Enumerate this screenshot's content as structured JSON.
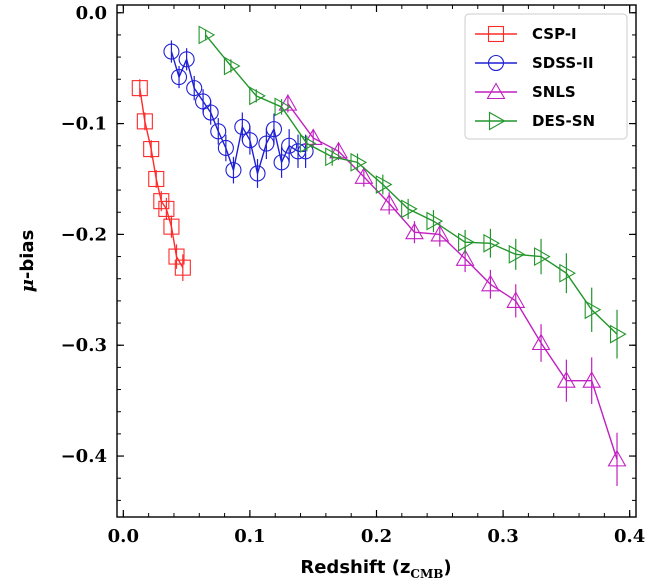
{
  "chart_data": {
    "type": "line",
    "xlabel": "Redshift (z",
    "xlabel_sub": "CMB",
    "xlabel_close": ")",
    "ylabel_symbol": "μ",
    "ylabel_text": "-bias",
    "xlim": [
      -0.005,
      0.405
    ],
    "ylim": [
      -0.455,
      0.007
    ],
    "xticks": [
      0.0,
      0.1,
      0.2,
      0.3,
      0.4
    ],
    "xtick_labels": [
      "0.0",
      "0.1",
      "0.2",
      "0.3",
      "0.4"
    ],
    "yticks": [
      0.0,
      -0.1,
      -0.2,
      -0.3,
      -0.4
    ],
    "ytick_labels": [
      "0.0",
      "−0.1",
      "−0.2",
      "−0.3",
      "−0.4"
    ],
    "legend_position": "top-right",
    "series": [
      {
        "name": "CSP-I",
        "color": "#ff2a2a",
        "marker": "square",
        "x": [
          0.013,
          0.017,
          0.022,
          0.026,
          0.03,
          0.034,
          0.038,
          0.042,
          0.047
        ],
        "y": [
          -0.068,
          -0.098,
          -0.123,
          -0.15,
          -0.17,
          -0.177,
          -0.193,
          -0.22,
          -0.23
        ],
        "err": [
          0.008,
          0.008,
          0.008,
          0.008,
          0.009,
          0.01,
          0.01,
          0.011,
          0.012
        ]
      },
      {
        "name": "SDSS-II",
        "color": "#1f1fd6",
        "marker": "circle",
        "x": [
          0.038,
          0.044,
          0.05,
          0.056,
          0.063,
          0.069,
          0.075,
          0.081,
          0.087,
          0.094,
          0.1,
          0.106,
          0.113,
          0.119,
          0.125,
          0.131,
          0.138,
          0.144
        ],
        "y": [
          -0.035,
          -0.058,
          -0.042,
          -0.068,
          -0.08,
          -0.09,
          -0.107,
          -0.122,
          -0.142,
          -0.103,
          -0.115,
          -0.145,
          -0.118,
          -0.105,
          -0.135,
          -0.12,
          -0.125,
          -0.125
        ],
        "err": [
          0.01,
          0.01,
          0.01,
          0.011,
          0.011,
          0.011,
          0.012,
          0.012,
          0.012,
          0.013,
          0.013,
          0.013,
          0.014,
          0.014,
          0.014,
          0.015,
          0.015,
          0.015
        ]
      },
      {
        "name": "SNLS",
        "color": "#c21fc2",
        "marker": "triangle-up",
        "x": [
          0.13,
          0.15,
          0.17,
          0.19,
          0.21,
          0.23,
          0.25,
          0.27,
          0.29,
          0.31,
          0.33,
          0.35,
          0.37,
          0.39
        ],
        "y": [
          -0.082,
          -0.113,
          -0.125,
          -0.148,
          -0.172,
          -0.198,
          -0.2,
          -0.222,
          -0.245,
          -0.26,
          -0.298,
          -0.332,
          -0.332,
          -0.403
        ],
        "err": [
          0.008,
          0.008,
          0.008,
          0.009,
          0.01,
          0.01,
          0.011,
          0.012,
          0.013,
          0.015,
          0.017,
          0.019,
          0.021,
          0.024
        ]
      },
      {
        "name": "DES-SN",
        "color": "#22962b",
        "marker": "triangle-right",
        "x": [
          0.065,
          0.085,
          0.105,
          0.125,
          0.145,
          0.165,
          0.185,
          0.205,
          0.225,
          0.245,
          0.27,
          0.29,
          0.31,
          0.33,
          0.35,
          0.37,
          0.39
        ],
        "y": [
          -0.02,
          -0.048,
          -0.075,
          -0.085,
          -0.118,
          -0.13,
          -0.135,
          -0.155,
          -0.177,
          -0.188,
          -0.207,
          -0.208,
          -0.218,
          -0.22,
          -0.235,
          -0.268,
          -0.29
        ],
        "err": [
          0.005,
          0.006,
          0.006,
          0.007,
          0.007,
          0.008,
          0.008,
          0.009,
          0.009,
          0.01,
          0.011,
          0.013,
          0.014,
          0.016,
          0.018,
          0.02,
          0.022
        ]
      }
    ]
  }
}
